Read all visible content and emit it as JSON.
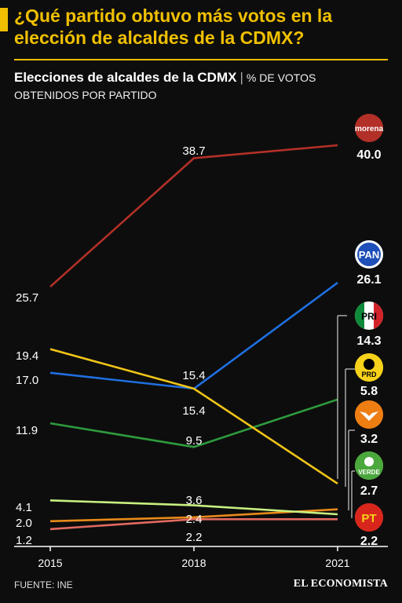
{
  "header": {
    "title": "¿Qué partido obtuvo más votos en la elección de alcaldes de la CDMX?",
    "subtitle_main": "Elecciones de alcaldes de la CDMX",
    "subtitle_rest": "% DE VOTOS",
    "subtitle_line2": "OBTENIDOS POR PARTIDO"
  },
  "chart_data": {
    "type": "line",
    "x": [
      "2015",
      "2018",
      "2021"
    ],
    "series": [
      {
        "name": "Morena",
        "logo_text": "morena",
        "color": "#b23027",
        "values": [
          25.7,
          38.7,
          40.0
        ]
      },
      {
        "name": "PAN",
        "logo_text": "PAN",
        "color": "#1f6fe0",
        "values": [
          17.0,
          15.4,
          26.1
        ]
      },
      {
        "name": "PRI",
        "logo_text": "PRI",
        "color": "#2e9a3e",
        "values": [
          11.9,
          9.5,
          14.3
        ]
      },
      {
        "name": "PRD",
        "logo_text": "PRD",
        "color": "#f0c419",
        "values": [
          19.4,
          15.4,
          5.8
        ]
      },
      {
        "name": "MC",
        "logo_text": "",
        "color": "#e88a1a",
        "values": [
          2.0,
          2.4,
          3.2
        ]
      },
      {
        "name": "Verde",
        "logo_text": "VERDE",
        "color": "#c8f080",
        "values": [
          4.1,
          3.6,
          2.7
        ]
      },
      {
        "name": "PT",
        "logo_text": "PT",
        "color": "#e26a60",
        "values": [
          1.2,
          2.2,
          2.2
        ]
      }
    ],
    "point_labels_2015": [
      "25.7",
      "19.4",
      "17.0",
      "11.9",
      "4.1",
      "2.0",
      "1.2"
    ],
    "point_labels_2018": [
      "38.7",
      "15.4",
      "15.4",
      "9.5",
      "3.6",
      "2.4",
      "2.2"
    ],
    "end_labels_2021": [
      "40.0",
      "26.1",
      "14.3",
      "5.8",
      "3.2",
      "2.7",
      "2.2"
    ],
    "ylim": [
      0,
      44
    ],
    "grid": false
  },
  "footer": {
    "source": "FUENTE: INE",
    "brand": "EL ECONOMISTA"
  }
}
